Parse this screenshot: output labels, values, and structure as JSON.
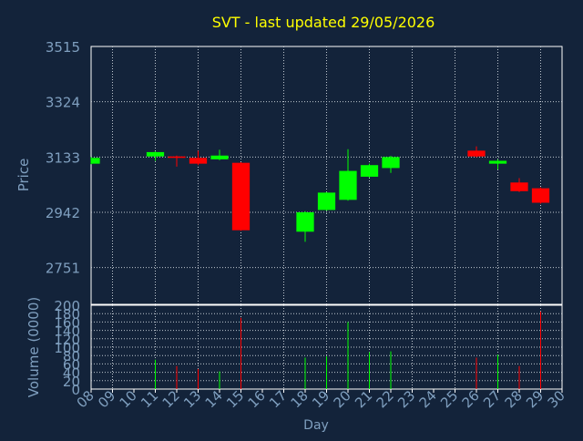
{
  "chart_data": {
    "type": "candlestick",
    "title": "SVT - last updated 29/05/2026",
    "price_panel": {
      "ylabel": "Price",
      "ylim": [
        2624,
        3515
      ],
      "yticks": [
        2751,
        2942,
        3133,
        3324,
        3515
      ]
    },
    "volume_panel": {
      "ylabel": "Volume (0000)",
      "ylim": [
        0,
        200
      ],
      "yticks": [
        0,
        20,
        40,
        60,
        80,
        100,
        120,
        140,
        160,
        180,
        200
      ]
    },
    "xlabel": "Day",
    "xlim": [
      8,
      30
    ],
    "x_tick_labels": [
      "08",
      "09",
      "10",
      "11",
      "12",
      "13",
      "14",
      "15",
      "16",
      "17",
      "18",
      "19",
      "20",
      "21",
      "22",
      "23",
      "24",
      "25",
      "26",
      "27",
      "28",
      "29",
      "30"
    ],
    "grid": true,
    "colors": {
      "background": "#13233a",
      "plot_border": "#ffffff",
      "grid": "#c0c8d0",
      "title": "#ffff00",
      "axis_text": "#7f9fbf",
      "up": "#00ff00",
      "down": "#ff0000"
    },
    "candles": [
      {
        "day": 8,
        "open": 3110,
        "close": 3130,
        "high": 3133,
        "low": 3108,
        "volume": 0
      },
      {
        "day": 11,
        "open": 3135,
        "close": 3150,
        "high": 3152,
        "low": 3120,
        "volume": 70
      },
      {
        "day": 12,
        "open": 3135,
        "close": 3130,
        "high": 3138,
        "low": 3100,
        "volume": 55
      },
      {
        "day": 13,
        "open": 3130,
        "close": 3110,
        "high": 3155,
        "low": 3105,
        "volume": 48
      },
      {
        "day": 14,
        "open": 3125,
        "close": 3138,
        "high": 3158,
        "low": 3122,
        "volume": 42
      },
      {
        "day": 15,
        "open": 3113,
        "close": 2880,
        "high": 3115,
        "low": 2878,
        "volume": 170
      },
      {
        "day": 18,
        "open": 2875,
        "close": 2942,
        "high": 2946,
        "low": 2840,
        "volume": 75
      },
      {
        "day": 19,
        "open": 2950,
        "close": 3010,
        "high": 3012,
        "low": 2948,
        "volume": 78
      },
      {
        "day": 20,
        "open": 2985,
        "close": 3085,
        "high": 3160,
        "low": 2982,
        "volume": 160
      },
      {
        "day": 21,
        "open": 3065,
        "close": 3105,
        "high": 3110,
        "low": 3062,
        "volume": 88
      },
      {
        "day": 22,
        "open": 3095,
        "close": 3133,
        "high": 3137,
        "low": 3078,
        "volume": 90
      },
      {
        "day": 26,
        "open": 3155,
        "close": 3135,
        "high": 3170,
        "low": 3132,
        "volume": 75
      },
      {
        "day": 27,
        "open": 3110,
        "close": 3120,
        "high": 3125,
        "low": 3090,
        "volume": 82
      },
      {
        "day": 28,
        "open": 3045,
        "close": 3015,
        "high": 3060,
        "low": 3012,
        "volume": 55
      },
      {
        "day": 29,
        "open": 3025,
        "close": 2975,
        "high": 3028,
        "low": 2972,
        "volume": 185
      }
    ]
  }
}
